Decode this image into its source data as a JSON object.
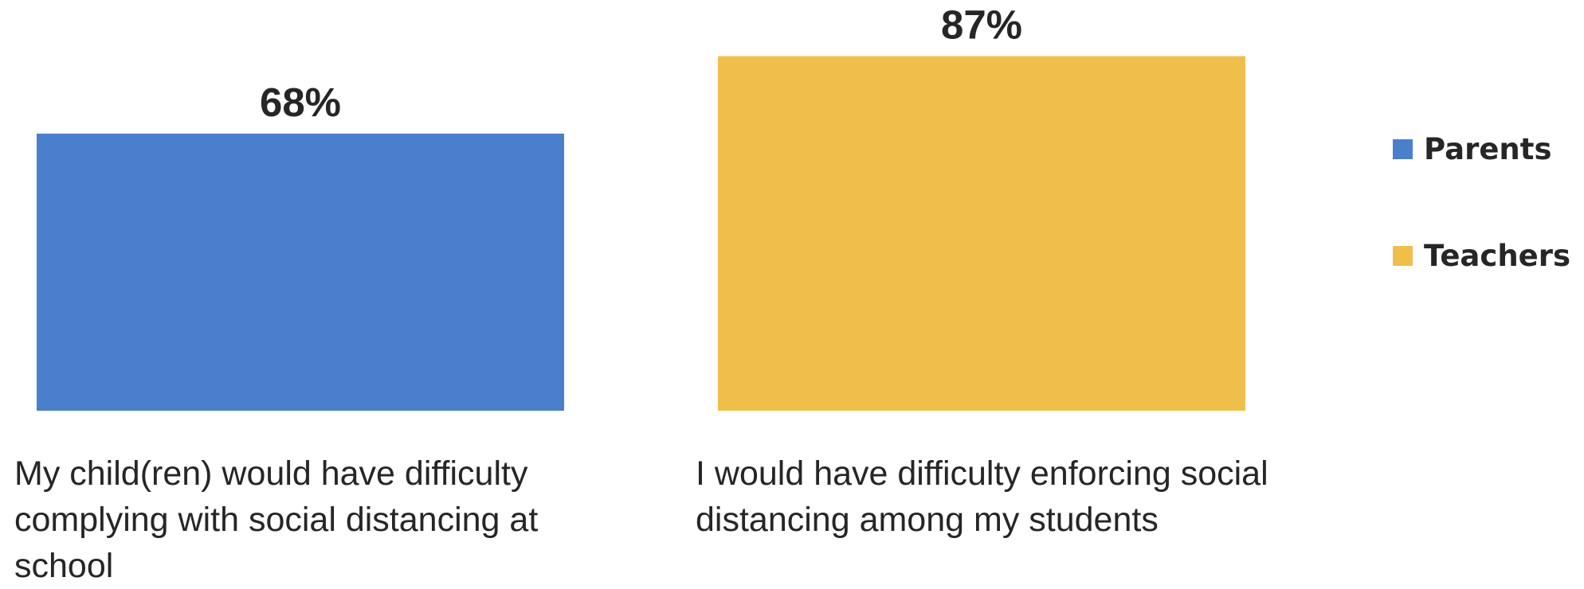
{
  "chart_data": {
    "type": "bar",
    "categories": [
      "My child(ren) would have difficulty complying with social distancing at school",
      "I would have difficulty enforcing social distancing among my students"
    ],
    "category_lines": [
      [
        "My child(ren) would have difficulty",
        "complying with social distancing at",
        "school"
      ],
      [
        "I would have difficulty enforcing social",
        "distancing among my students"
      ]
    ],
    "series": [
      {
        "name": "Parents",
        "values": [
          68,
          null
        ],
        "color": "#4a7fcc"
      },
      {
        "name": "Teachers",
        "values": [
          null,
          87
        ],
        "color": "#f0bf4b"
      }
    ],
    "data_labels": [
      "68%",
      "87%"
    ],
    "ylim": [
      0,
      100
    ],
    "unit": "%",
    "legend_position": "right",
    "grid": false,
    "title": "",
    "xlabel": "",
    "ylabel": ""
  }
}
